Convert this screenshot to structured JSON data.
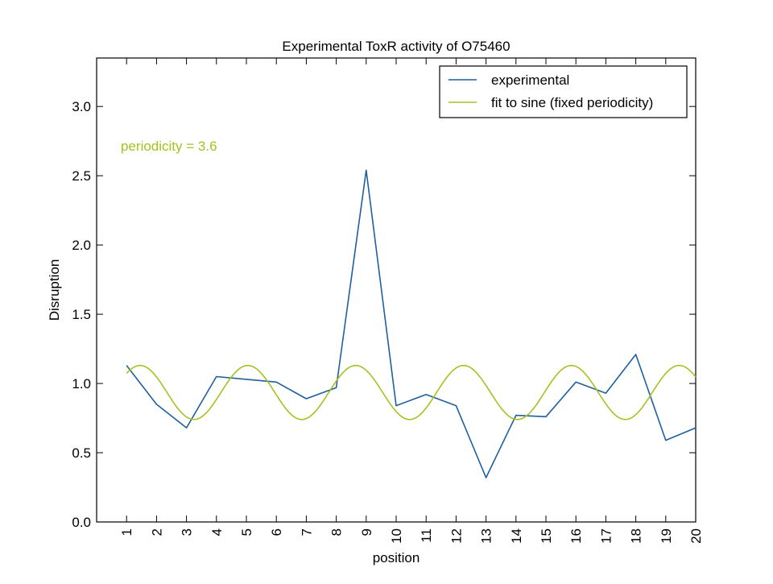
{
  "chart_data": {
    "type": "line",
    "title": "Experimental ToxR activity of O75460",
    "xlabel": "position",
    "ylabel": "Disruption",
    "xlim": [
      0,
      20
    ],
    "ylim": [
      0.0,
      3.35
    ],
    "x_ticks": [
      1,
      2,
      3,
      4,
      5,
      6,
      7,
      8,
      9,
      10,
      11,
      12,
      13,
      14,
      15,
      16,
      17,
      18,
      19,
      20
    ],
    "y_ticks": [
      0.0,
      0.5,
      1.0,
      1.5,
      2.0,
      2.5,
      3.0
    ],
    "y_tick_labels": [
      "0.0",
      "0.5",
      "1.0",
      "1.5",
      "2.0",
      "2.5",
      "3.0"
    ],
    "grid": false,
    "legend_position": "top-right",
    "annotation": "periodicity = 3.6",
    "series": [
      {
        "name": "experimental",
        "color": "#1f5fa0",
        "x": [
          1,
          2,
          3,
          4,
          5,
          6,
          7,
          8,
          9,
          10,
          11,
          12,
          13,
          14,
          15,
          16,
          17,
          18,
          19,
          20
        ],
        "y": [
          1.13,
          0.85,
          0.68,
          1.05,
          1.03,
          1.01,
          0.89,
          0.97,
          2.54,
          0.84,
          0.92,
          0.84,
          0.32,
          0.77,
          0.76,
          1.01,
          0.93,
          1.21,
          0.59,
          0.68
        ]
      },
      {
        "name": "fit to sine (fixed periodicity)",
        "color": "#a8c020",
        "function": "sine",
        "periodicity": 3.6,
        "mean": 0.935,
        "amplitude": 0.195,
        "peak_at": 1.45,
        "x_range": [
          1,
          20
        ]
      }
    ]
  }
}
